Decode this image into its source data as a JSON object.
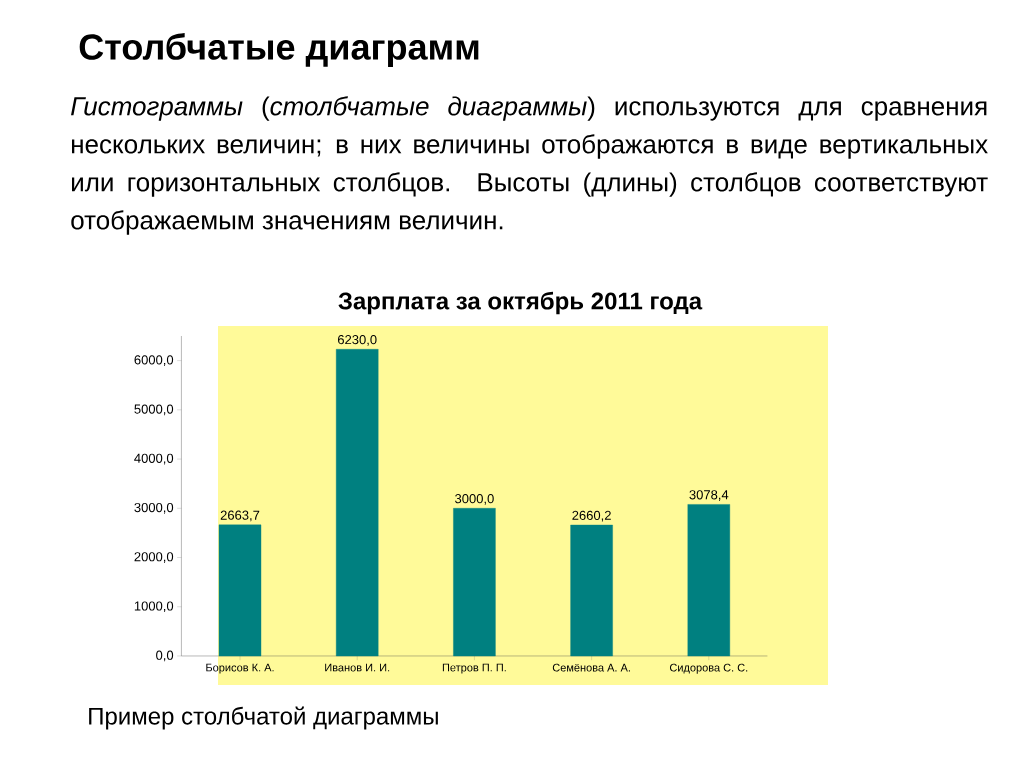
{
  "chart_data": {
    "type": "bar",
    "title": "Зарплата за октябрь 2011 года",
    "subtitle": "*Гистограммы* (*столбчатые диаграммы*) используются для сравнения нескольких величин; в них величины отображаются в виде вертикальных или горизонтальных столбцов. Высоты (длины) столбцов соответствуют отображаемым значениям величин.",
    "annotations": [
      "Столбчатые диаграмм",
      "Пример столбчатой диаграммы"
    ],
    "categories": [
      "Борисов К. А.",
      "Иванов И. И.",
      "Петров П. П.",
      "Семёнова А. А.",
      "Сидорова С. С."
    ],
    "values": [
      2663.7,
      6230.0,
      3000.0,
      2660.2,
      3078.4
    ],
    "value_labels": [
      "2663,7",
      "6230,0",
      "3000,0",
      "2660,2",
      "3078,4"
    ],
    "color": "#008080",
    "ylim": [
      0,
      6500
    ],
    "yticks": [
      {
        "value": 0,
        "label": "0,0"
      },
      {
        "value": 1000,
        "label": "1000,0"
      },
      {
        "value": 2000,
        "label": "2000,0"
      },
      {
        "value": 3000,
        "label": "3000,0"
      },
      {
        "value": 4000,
        "label": "4000,0"
      },
      {
        "value": 5000,
        "label": "5000,0"
      },
      {
        "value": 6000,
        "label": "6000,0"
      }
    ]
  }
}
